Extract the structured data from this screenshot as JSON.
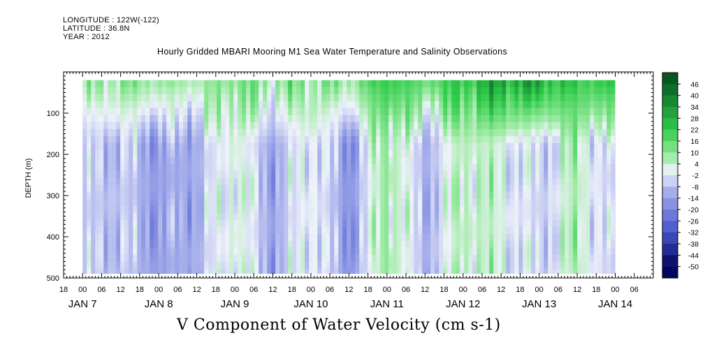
{
  "header": {
    "longitude": "LONGITUDE : 122W(-122)",
    "latitude": "LATITUDE : 36.8N",
    "year": "YEAR : 2012"
  },
  "chart_data": {
    "type": "heatmap",
    "title": "Hourly Gridded MBARI Mooring M1 Sea Water Temperature and Salinity Observations",
    "variable": "V Component of Water Velocity (cm s-1)",
    "ylabel": "DEPTH (m)",
    "ylim": [
      500,
      0
    ],
    "y_reversed": true,
    "y_data_range": [
      20,
      490
    ],
    "y_ticks": [
      100,
      200,
      300,
      400,
      500
    ],
    "x_start": "2012-01-06T18:00",
    "x_end": "2012-01-14T12:00",
    "x_data_start": "2012-01-07T00:00",
    "x_data_end": "2012-01-14T00:00",
    "x_hour_ticks": [
      "18",
      "00",
      "06",
      "12",
      "18",
      "00",
      "06",
      "12",
      "18",
      "00",
      "06",
      "12",
      "18",
      "00",
      "06",
      "12",
      "18",
      "00",
      "06",
      "12",
      "18",
      "00",
      "06",
      "12",
      "18",
      "00",
      "06",
      "12",
      "18",
      "00",
      "06"
    ],
    "x_day_labels": [
      {
        "label": "JAN  7",
        "time": "2012-01-07T00:00"
      },
      {
        "label": "JAN  8",
        "time": "2012-01-08T00:00"
      },
      {
        "label": "JAN  9",
        "time": "2012-01-09T00:00"
      },
      {
        "label": "JAN 10",
        "time": "2012-01-10T00:00"
      },
      {
        "label": "JAN 11",
        "time": "2012-01-11T00:00"
      },
      {
        "label": "JAN 12",
        "time": "2012-01-12T00:00"
      },
      {
        "label": "JAN 13",
        "time": "2012-01-13T00:00"
      },
      {
        "label": "JAN 14",
        "time": "2012-01-14T00:00"
      }
    ],
    "colorbar": {
      "levels": [
        -50,
        -44,
        -38,
        -32,
        -26,
        -20,
        -14,
        -8,
        -2,
        4,
        10,
        16,
        22,
        28,
        34,
        40,
        46
      ],
      "range": [
        -50,
        50
      ],
      "colors": {
        "min": "#05055f",
        "neg_mid": "#4a5bd0",
        "neg_light": "#aab2ec",
        "zero": "#eef2fa",
        "pos_light": "#9ceba2",
        "pos_mid": "#30cc4a",
        "max": "#034d1f"
      }
    },
    "field_bands": [
      {
        "time": "2012-01-07T00:00",
        "shallow": 4,
        "deep": -8
      },
      {
        "time": "2012-01-07T12:00",
        "shallow": 10,
        "deep": -6
      },
      {
        "time": "2012-01-08T00:00",
        "shallow": 8,
        "deep": -14
      },
      {
        "time": "2012-01-08T12:00",
        "shallow": 6,
        "deep": -10
      },
      {
        "time": "2012-01-09T00:00",
        "shallow": 12,
        "deep": 4
      },
      {
        "time": "2012-01-09T12:00",
        "shallow": 8,
        "deep": -12
      },
      {
        "time": "2012-01-10T00:00",
        "shallow": 10,
        "deep": 2
      },
      {
        "time": "2012-01-10T12:00",
        "shallow": 8,
        "deep": -16
      },
      {
        "time": "2012-01-11T00:00",
        "shallow": 22,
        "deep": 10
      },
      {
        "time": "2012-01-11T12:00",
        "shallow": 14,
        "deep": -10
      },
      {
        "time": "2012-01-12T00:00",
        "shallow": 22,
        "deep": 6
      },
      {
        "time": "2012-01-12T12:00",
        "shallow": 30,
        "deep": 2
      },
      {
        "time": "2012-01-13T00:00",
        "shallow": 28,
        "deep": -6
      },
      {
        "time": "2012-01-13T12:00",
        "shallow": 20,
        "deep": 6
      },
      {
        "time": "2012-01-14T00:00",
        "shallow": 22,
        "deep": -8
      }
    ]
  }
}
